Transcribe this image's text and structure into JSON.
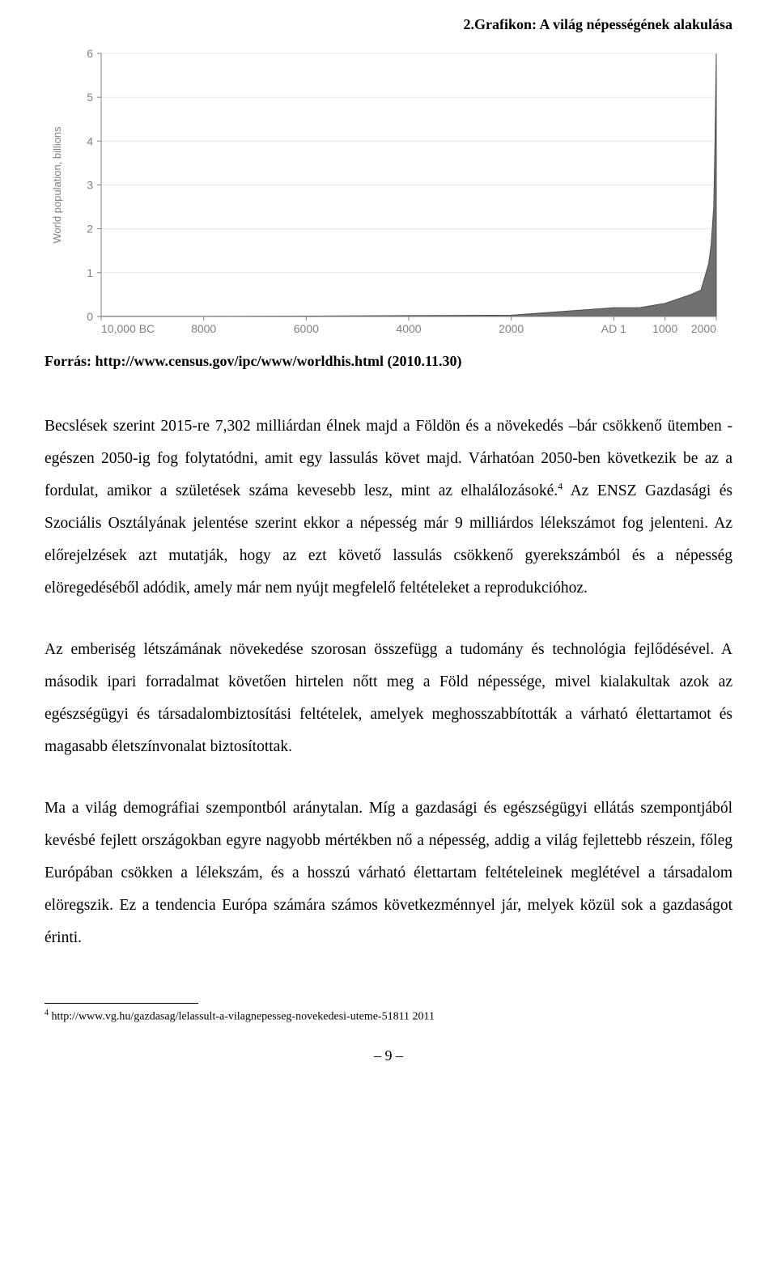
{
  "figure": {
    "title": "2.Grafikon: A világ népességének alakulása",
    "source_label": "Forrás: http://www.census.gov/ipc/www/worldhis.html (2010.11.30)"
  },
  "population_chart": {
    "type": "area",
    "y_axis_label": "World population, billions",
    "x_axis_labels": [
      "10,000 BC",
      "8000",
      "6000",
      "4000",
      "2000",
      "AD 1",
      "1000",
      "2000"
    ],
    "x_tick_positions": [
      0,
      2000,
      4000,
      6000,
      8000,
      10000,
      11000,
      12000
    ],
    "y_ticks": [
      0,
      1,
      2,
      3,
      4,
      5,
      6
    ],
    "ylim": [
      0,
      6
    ],
    "xlim": [
      -10000,
      2000
    ],
    "data_points": [
      {
        "year": -10000,
        "pop": 0.005
      },
      {
        "year": -8000,
        "pop": 0.005
      },
      {
        "year": -6000,
        "pop": 0.01
      },
      {
        "year": -4000,
        "pop": 0.02
      },
      {
        "year": -2000,
        "pop": 0.03
      },
      {
        "year": 1,
        "pop": 0.2
      },
      {
        "year": 500,
        "pop": 0.2
      },
      {
        "year": 1000,
        "pop": 0.3
      },
      {
        "year": 1500,
        "pop": 0.5
      },
      {
        "year": 1700,
        "pop": 0.6
      },
      {
        "year": 1800,
        "pop": 1.0
      },
      {
        "year": 1850,
        "pop": 1.2
      },
      {
        "year": 1900,
        "pop": 1.65
      },
      {
        "year": 1950,
        "pop": 2.5
      },
      {
        "year": 1975,
        "pop": 4.0
      },
      {
        "year": 2000,
        "pop": 6.0
      }
    ],
    "colors": {
      "fill": "#707070",
      "line": "#505050",
      "axis": "#808080",
      "grid": "#e8e8e8",
      "tick_label": "#808080",
      "background": "#ffffff"
    },
    "font_sizes": {
      "tick": 14,
      "axis_label": 13
    },
    "line_width": 1
  },
  "paragraphs": {
    "p1_a": "Becslések szerint 2015-re 7,302 milliárdan élnek majd a Földön és a növekedés –bár csökkenő ütemben - egészen 2050-ig fog folytatódni, amit egy lassulás követ majd. Várhatóan 2050-ben következik be az a fordulat, amikor a születések száma kevesebb lesz, mint az elhalálozásoké.",
    "p1_sup": "4",
    "p1_b": " Az ENSZ Gazdasági és Szociális Osztályának jelentése szerint ekkor a népesség már 9 milliárdos lélekszámot fog jelenteni. Az előrejelzések azt mutatják, hogy az ezt követő lassulás csökkenő gyerekszámból és a népesség elöregedéséből adódik, amely már nem nyújt megfelelő feltételeket a reprodukcióhoz.",
    "p2": "Az emberiség létszámának növekedése szorosan összefügg a tudomány és technológia fejlődésével. A második ipari forradalmat követően hirtelen nőtt meg a Föld népessége, mivel kialakultak azok az egészségügyi és társadalombiztosítási feltételek, amelyek meghosszabbították a várható élettartamot és magasabb életszínvonalat biztosítottak.",
    "p3": "Ma a világ demográfiai szempontból aránytalan. Míg a gazdasági és egészségügyi ellátás szempontjából kevésbé fejlett országokban egyre nagyobb mértékben nő a népesség, addig a világ fejlettebb részein, főleg Európában csökken a lélekszám, és a hosszú várható élettartam feltételeinek meglétével a társadalom elöregszik. Ez a tendencia Európa számára számos következménnyel jár, melyek közül sok a gazdaságot érinti."
  },
  "footnote": {
    "marker": "4",
    "text": " http://www.vg.hu/gazdasag/lelassult-a-vilagnepesseg-novekedesi-uteme-51811 2011"
  },
  "page_number": "9"
}
